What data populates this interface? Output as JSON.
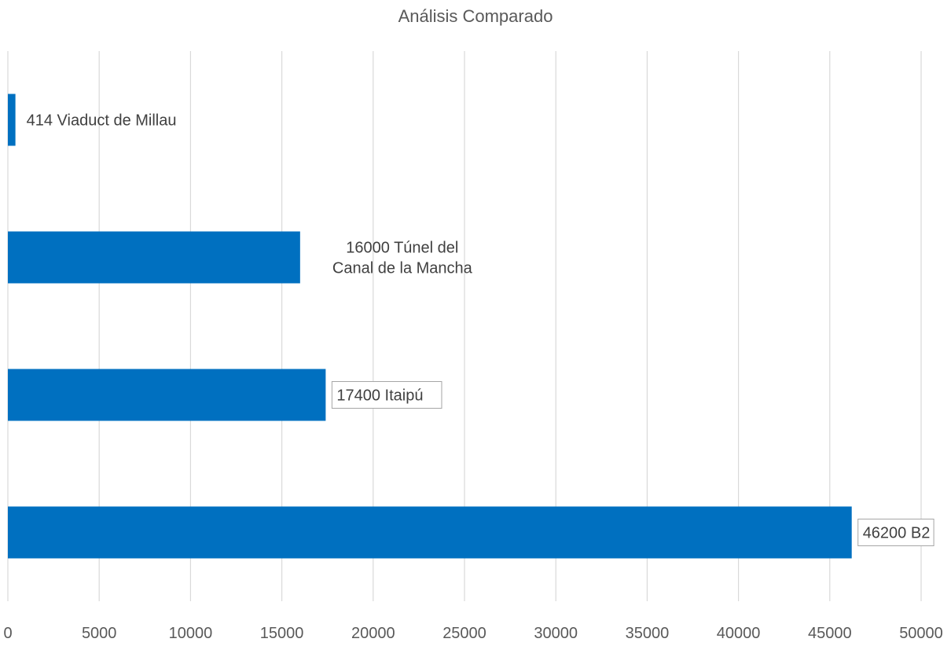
{
  "chart_data": {
    "type": "bar",
    "orientation": "horizontal",
    "title": "Análisis Comparado",
    "categories": [
      "Viaduct de Millau",
      "Túnel del Canal de la Mancha",
      "Itaipú",
      "B2"
    ],
    "values": [
      414,
      16000,
      17400,
      46200
    ],
    "data_labels": [
      "414 Viaduct de Millau",
      "16000 Túnel del Canal de la Mancha",
      "17400 Itaipú",
      "46200 B2"
    ],
    "xlim": [
      0,
      50000
    ],
    "x_ticks": [
      0,
      5000,
      10000,
      15000,
      20000,
      25000,
      30000,
      35000,
      40000,
      45000,
      50000
    ],
    "grid": "vertical",
    "legend": "none",
    "xlabel": "",
    "ylabel": "",
    "colors": {
      "bar": "#0070C0",
      "grid": "#D9D9D9",
      "label_box_border": "#A6A6A6"
    }
  }
}
